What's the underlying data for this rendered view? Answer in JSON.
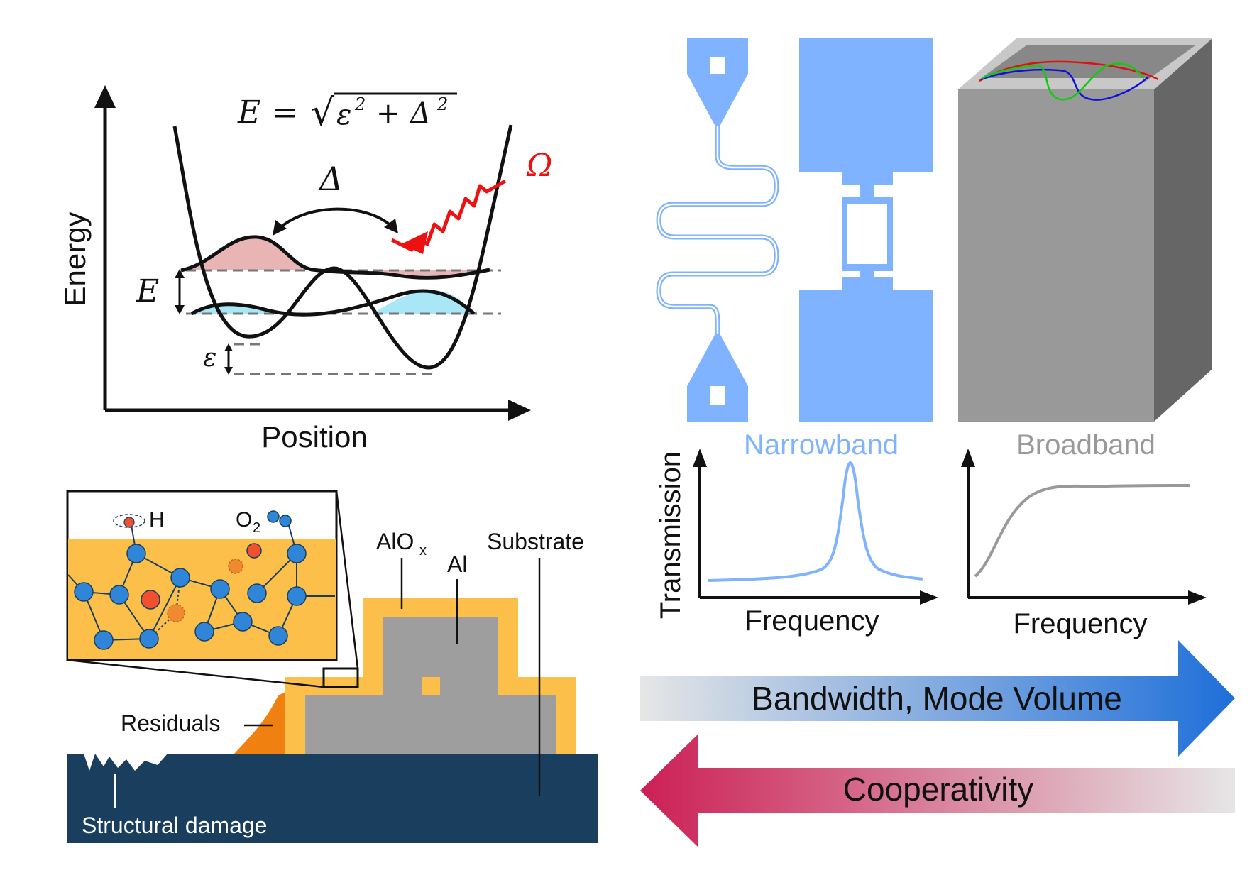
{
  "energy_diagram": {
    "formula_lhs": "E",
    "formula_equals": "=",
    "formula_sqrt": "√",
    "formula_radicand_eps": "ε",
    "formula_exp1": "2",
    "formula_plus": "+",
    "formula_radicand_delta": "Δ",
    "formula_exp2": "2",
    "delta_label": "Δ",
    "omega_label": "Ω",
    "energy_gap_label": "E",
    "epsilon_label": "ε",
    "y_axis_label": "Energy",
    "x_axis_label": "Position",
    "colors": {
      "upper_state": "#e8b4b4",
      "lower_state": "#a9e7f7",
      "drive": "#ee1111"
    }
  },
  "material_diagram": {
    "hydrogen_label": "H",
    "oxygen_label": "O",
    "oxygen_subscript": "2",
    "oxide_label": "AlO",
    "oxide_subscript": "x",
    "aluminum_label": "Al",
    "substrate_label": "Substrate",
    "residuals_label": "Residuals",
    "damage_label": "Structural damage",
    "colors": {
      "oxide": "#fbbf4a",
      "metal": "#9e9e9e",
      "substrate": "#1a3f5e",
      "residuals": "#f08010",
      "defect": "#f05030",
      "atom": "#2f86d8"
    }
  },
  "resonators": {
    "narrowband_label": "Narrowband",
    "broadband_label": "Broadband",
    "transmission_label": "Transmission",
    "frequency_label_left": "Frequency",
    "frequency_label_right": "Frequency",
    "colors": {
      "narrowband": "#80b3ff",
      "broadband": "#999999",
      "cavity_dark": "#666666",
      "cavity_light": "#c8c8c8"
    }
  },
  "arrows": {
    "bandwidth_label": "Bandwidth, Mode Volume",
    "cooperativity_label": "Cooperativity",
    "colors": {
      "bandwidth_end": "#1e6fd9",
      "cooperativity_end": "#cc1f55"
    }
  }
}
